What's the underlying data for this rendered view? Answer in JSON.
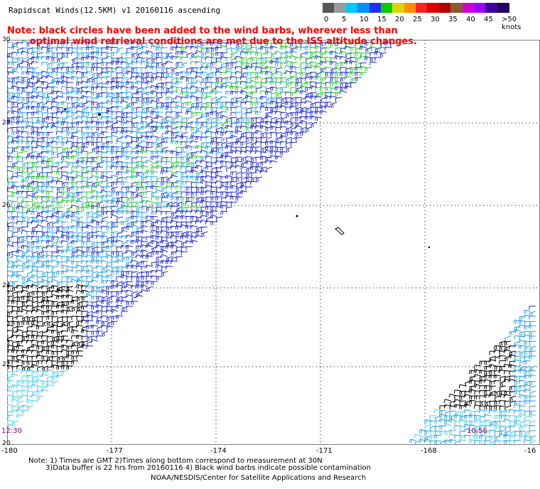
{
  "title": "Rapidscat Winds(12.5KM) v1 20160116 ascending",
  "note_red_line1": "Note: black circles have been added to the wind barbs, wherever less than",
  "note_red_line2": "       optimal wind retrieval conditions are met due to the ISS altitude changes.",
  "colorbar": {
    "labels": [
      "0",
      "5",
      "10",
      "15",
      "20",
      "25",
      "30",
      "35",
      "40",
      "45",
      ">50 knots"
    ],
    "colors": [
      "#555555",
      "#999999",
      "#00c8ff",
      "#0090ff",
      "#2030ff",
      "#00cc00",
      "#d8d800",
      "#ff8c00",
      "#ff2020",
      "#e00000",
      "#b00000",
      "#8a5a2a",
      "#d000d0",
      "#a000ff",
      "#4000a0",
      "#200060"
    ]
  },
  "map": {
    "x_ticks": [
      "-180",
      "-177",
      "-174",
      "-171",
      "-168",
      "-16"
    ],
    "y_ticks": [
      "30",
      "28",
      "26",
      "24",
      "22",
      "20"
    ],
    "time_left": "12:30",
    "time_right": "10:56"
  },
  "footer": {
    "line1": "Note: 1) Times are GMT 2)Times along bottom correspond to measurement at 30N",
    "line2": "3)Data buffer is 22 hrs from 20160116 4) Black wind barbs indicate possible contamination",
    "line3": "NOAA/NESDIS/Center for Satellite Applications and Research"
  },
  "colors": {
    "barb_blue": "#1e2ad8",
    "barb_lightblue": "#2aa0e6",
    "barb_cyan": "#4fd0f0",
    "barb_green": "#22cc22",
    "barb_black": "#000000",
    "grid": "#000000",
    "note_red": "#ff0000",
    "time_purple": "#800080"
  }
}
